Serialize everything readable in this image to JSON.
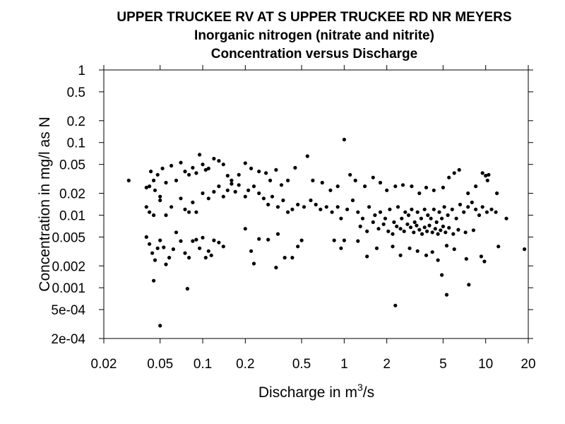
{
  "chart_data": {
    "type": "scatter",
    "title_lines": [
      "UPPER TRUCKEE RV AT S UPPER TRUCKEE RD NR MEYERS",
      "Inorganic nitrogen (nitrate and nitrite)",
      "Concentration versus Discharge"
    ],
    "xlabel": "Discharge in m",
    "xlabel_sup": "3",
    "xlabel_tail": "/s",
    "ylabel": "Concentration in mg/l as N",
    "x_scale": "log",
    "y_scale": "log",
    "xlim": [
      0.02,
      20
    ],
    "ylim": [
      0.0002,
      1
    ],
    "x_ticks": [
      {
        "value": 0.02,
        "label": "0.02"
      },
      {
        "value": 0.05,
        "label": "0.05"
      },
      {
        "value": 0.1,
        "label": "0.1"
      },
      {
        "value": 0.2,
        "label": "0.2"
      },
      {
        "value": 0.5,
        "label": "0.5"
      },
      {
        "value": 1,
        "label": "1"
      },
      {
        "value": 2,
        "label": "2"
      },
      {
        "value": 5,
        "label": "5"
      },
      {
        "value": 10,
        "label": "10"
      },
      {
        "value": 20,
        "label": "20"
      }
    ],
    "y_ticks": [
      {
        "value": 1,
        "label": "1"
      },
      {
        "value": 0.5,
        "label": "0.5"
      },
      {
        "value": 0.2,
        "label": "0.2"
      },
      {
        "value": 0.1,
        "label": "0.1"
      },
      {
        "value": 0.05,
        "label": "0.05"
      },
      {
        "value": 0.02,
        "label": "0.02"
      },
      {
        "value": 0.01,
        "label": "0.01"
      },
      {
        "value": 0.005,
        "label": "0.005"
      },
      {
        "value": 0.002,
        "label": "0.002"
      },
      {
        "value": 0.001,
        "label": "0.001"
      },
      {
        "value": 0.0005,
        "label": "5e-04"
      },
      {
        "value": 0.0002,
        "label": "2e-04"
      }
    ],
    "grid": false,
    "legend": "none",
    "marker_color": "#000000",
    "points": [
      [
        0.03,
        0.03
      ],
      [
        0.04,
        0.024
      ],
      [
        0.042,
        0.025
      ],
      [
        0.043,
        0.04
      ],
      [
        0.045,
        0.03
      ],
      [
        0.046,
        0.022
      ],
      [
        0.048,
        0.036
      ],
      [
        0.05,
        0.018
      ],
      [
        0.052,
        0.044
      ],
      [
        0.055,
        0.028
      ],
      [
        0.06,
        0.048
      ],
      [
        0.065,
        0.03
      ],
      [
        0.07,
        0.053
      ],
      [
        0.075,
        0.04
      ],
      [
        0.08,
        0.036
      ],
      [
        0.085,
        0.045
      ],
      [
        0.09,
        0.038
      ],
      [
        0.095,
        0.068
      ],
      [
        0.1,
        0.05
      ],
      [
        0.105,
        0.042
      ],
      [
        0.11,
        0.044
      ],
      [
        0.12,
        0.06
      ],
      [
        0.13,
        0.056
      ],
      [
        0.14,
        0.05
      ],
      [
        0.15,
        0.035
      ],
      [
        0.16,
        0.03
      ],
      [
        0.18,
        0.036
      ],
      [
        0.2,
        0.052
      ],
      [
        0.22,
        0.044
      ],
      [
        0.25,
        0.04
      ],
      [
        0.28,
        0.038
      ],
      [
        0.3,
        0.03
      ],
      [
        0.33,
        0.042
      ],
      [
        0.36,
        0.026
      ],
      [
        0.4,
        0.03
      ],
      [
        0.45,
        0.045
      ],
      [
        0.55,
        0.065
      ],
      [
        0.6,
        0.03
      ],
      [
        0.7,
        0.028
      ],
      [
        0.8,
        0.022
      ],
      [
        0.9,
        0.025
      ],
      [
        1.0,
        0.11
      ],
      [
        1.1,
        0.036
      ],
      [
        1.2,
        0.03
      ],
      [
        1.4,
        0.025
      ],
      [
        1.6,
        0.033
      ],
      [
        1.8,
        0.028
      ],
      [
        2.0,
        0.022
      ],
      [
        2.3,
        0.025
      ],
      [
        2.6,
        0.026
      ],
      [
        3.0,
        0.025
      ],
      [
        3.4,
        0.02
      ],
      [
        3.8,
        0.024
      ],
      [
        4.3,
        0.022
      ],
      [
        5.0,
        0.024
      ],
      [
        5.5,
        0.033
      ],
      [
        6.0,
        0.038
      ],
      [
        6.5,
        0.042
      ],
      [
        7.5,
        0.02
      ],
      [
        8.5,
        0.025
      ],
      [
        9.5,
        0.038
      ],
      [
        10.0,
        0.035
      ],
      [
        10.3,
        0.03
      ],
      [
        10.5,
        0.036
      ],
      [
        12.0,
        0.02
      ],
      [
        0.04,
        0.013
      ],
      [
        0.042,
        0.011
      ],
      [
        0.045,
        0.01
      ],
      [
        0.05,
        0.016
      ],
      [
        0.055,
        0.01
      ],
      [
        0.06,
        0.013
      ],
      [
        0.07,
        0.017
      ],
      [
        0.075,
        0.012
      ],
      [
        0.08,
        0.011
      ],
      [
        0.085,
        0.015
      ],
      [
        0.09,
        0.011
      ],
      [
        0.1,
        0.02
      ],
      [
        0.11,
        0.017
      ],
      [
        0.12,
        0.021
      ],
      [
        0.13,
        0.025
      ],
      [
        0.14,
        0.018
      ],
      [
        0.15,
        0.022
      ],
      [
        0.16,
        0.027
      ],
      [
        0.17,
        0.021
      ],
      [
        0.18,
        0.026
      ],
      [
        0.2,
        0.018
      ],
      [
        0.21,
        0.022
      ],
      [
        0.23,
        0.025
      ],
      [
        0.25,
        0.02
      ],
      [
        0.27,
        0.017
      ],
      [
        0.29,
        0.014
      ],
      [
        0.31,
        0.018
      ],
      [
        0.34,
        0.013
      ],
      [
        0.37,
        0.016
      ],
      [
        0.4,
        0.011
      ],
      [
        0.43,
        0.012
      ],
      [
        0.47,
        0.014
      ],
      [
        0.52,
        0.013
      ],
      [
        0.58,
        0.016
      ],
      [
        0.63,
        0.014
      ],
      [
        0.68,
        0.012
      ],
      [
        0.75,
        0.013
      ],
      [
        0.82,
        0.011
      ],
      [
        0.9,
        0.013
      ],
      [
        0.95,
        0.009
      ],
      [
        1.05,
        0.012
      ],
      [
        1.15,
        0.016
      ],
      [
        1.25,
        0.011
      ],
      [
        1.35,
        0.009
      ],
      [
        1.5,
        0.013
      ],
      [
        1.65,
        0.01
      ],
      [
        1.8,
        0.011
      ],
      [
        1.95,
        0.009
      ],
      [
        2.1,
        0.012
      ],
      [
        2.25,
        0.008
      ],
      [
        2.4,
        0.013
      ],
      [
        2.55,
        0.009
      ],
      [
        2.7,
        0.011
      ],
      [
        2.85,
        0.01
      ],
      [
        3.0,
        0.012
      ],
      [
        3.15,
        0.008
      ],
      [
        3.3,
        0.011
      ],
      [
        3.5,
        0.009
      ],
      [
        3.7,
        0.012
      ],
      [
        3.9,
        0.01
      ],
      [
        4.1,
        0.009
      ],
      [
        4.3,
        0.012
      ],
      [
        4.5,
        0.008
      ],
      [
        4.7,
        0.011
      ],
      [
        4.9,
        0.009
      ],
      [
        5.1,
        0.013
      ],
      [
        5.4,
        0.01
      ],
      [
        5.8,
        0.012
      ],
      [
        6.2,
        0.009
      ],
      [
        6.6,
        0.014
      ],
      [
        7.0,
        0.011
      ],
      [
        7.5,
        0.013
      ],
      [
        8.0,
        0.015
      ],
      [
        8.5,
        0.012
      ],
      [
        9.0,
        0.01
      ],
      [
        9.5,
        0.013
      ],
      [
        10.2,
        0.011
      ],
      [
        11.0,
        0.012
      ],
      [
        11.8,
        0.011
      ],
      [
        14.0,
        0.009
      ],
      [
        1.3,
        0.007
      ],
      [
        1.45,
        0.006
      ],
      [
        1.6,
        0.008
      ],
      [
        1.75,
        0.0065
      ],
      [
        1.9,
        0.0075
      ],
      [
        2.05,
        0.006
      ],
      [
        2.2,
        0.0055
      ],
      [
        2.35,
        0.007
      ],
      [
        2.5,
        0.0065
      ],
      [
        2.65,
        0.006
      ],
      [
        2.8,
        0.0075
      ],
      [
        2.95,
        0.0068
      ],
      [
        3.1,
        0.0058
      ],
      [
        3.25,
        0.0072
      ],
      [
        3.4,
        0.0063
      ],
      [
        3.55,
        0.0055
      ],
      [
        3.7,
        0.0068
      ],
      [
        3.85,
        0.006
      ],
      [
        4.0,
        0.0072
      ],
      [
        4.2,
        0.0058
      ],
      [
        4.4,
        0.0065
      ],
      [
        4.6,
        0.0055
      ],
      [
        4.8,
        0.0062
      ],
      [
        5.0,
        0.007
      ],
      [
        5.2,
        0.0058
      ],
      [
        5.5,
        0.0067
      ],
      [
        5.9,
        0.0055
      ],
      [
        6.4,
        0.0063
      ],
      [
        7.2,
        0.0058
      ],
      [
        8.2,
        0.0062
      ],
      [
        0.04,
        0.005
      ],
      [
        0.042,
        0.004
      ],
      [
        0.044,
        0.003
      ],
      [
        0.046,
        0.0024
      ],
      [
        0.048,
        0.0035
      ],
      [
        0.05,
        0.0045
      ],
      [
        0.053,
        0.0036
      ],
      [
        0.055,
        0.0021
      ],
      [
        0.058,
        0.0026
      ],
      [
        0.062,
        0.0034
      ],
      [
        0.065,
        0.0058
      ],
      [
        0.07,
        0.0044
      ],
      [
        0.075,
        0.003
      ],
      [
        0.08,
        0.0026
      ],
      [
        0.085,
        0.0044
      ],
      [
        0.09,
        0.0046
      ],
      [
        0.095,
        0.0035
      ],
      [
        0.1,
        0.0049
      ],
      [
        0.105,
        0.0026
      ],
      [
        0.11,
        0.0032
      ],
      [
        0.115,
        0.0028
      ],
      [
        0.12,
        0.0045
      ],
      [
        0.13,
        0.0042
      ],
      [
        0.14,
        0.0037
      ],
      [
        0.2,
        0.0065
      ],
      [
        0.22,
        0.0032
      ],
      [
        0.25,
        0.0047
      ],
      [
        0.29,
        0.0046
      ],
      [
        0.34,
        0.0055
      ],
      [
        0.38,
        0.0026
      ],
      [
        0.43,
        0.0026
      ],
      [
        0.47,
        0.0037
      ],
      [
        0.5,
        0.0045
      ],
      [
        0.85,
        0.0045
      ],
      [
        0.95,
        0.0035
      ],
      [
        1.0,
        0.0045
      ],
      [
        1.25,
        0.0044
      ],
      [
        1.45,
        0.0027
      ],
      [
        1.7,
        0.0035
      ],
      [
        2.2,
        0.0037
      ],
      [
        2.5,
        0.0028
      ],
      [
        2.9,
        0.0035
      ],
      [
        3.3,
        0.0032
      ],
      [
        3.8,
        0.0028
      ],
      [
        4.2,
        0.0031
      ],
      [
        4.6,
        0.0024
      ],
      [
        5.3,
        0.0038
      ],
      [
        6.0,
        0.0034
      ],
      [
        7.3,
        0.0025
      ],
      [
        9.3,
        0.0027
      ],
      [
        9.8,
        0.0023
      ],
      [
        12.3,
        0.0037
      ],
      [
        18.8,
        0.0034
      ],
      [
        0.045,
        0.00125
      ],
      [
        0.05,
        0.0003
      ],
      [
        0.078,
        0.00097
      ],
      [
        0.23,
        0.00215
      ],
      [
        0.33,
        0.0019
      ],
      [
        2.3,
        0.00057
      ],
      [
        4.9,
        0.0015
      ],
      [
        5.3,
        0.0008
      ],
      [
        7.6,
        0.0011
      ]
    ]
  }
}
